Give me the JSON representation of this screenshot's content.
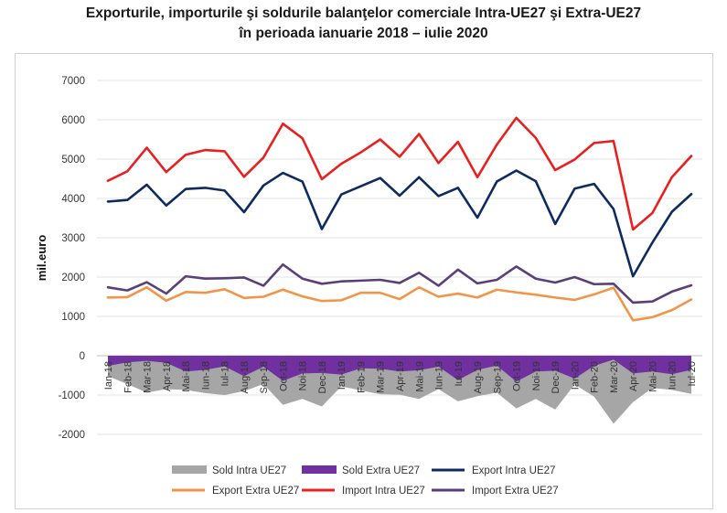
{
  "chart_data": {
    "type": "line",
    "title_line1": "Exporturile, importurile şi soldurile balanţelor comerciale Intra-UE27 şi Extra-UE27",
    "title_line2": "în perioada ianuarie 2018 – iulie 2020",
    "ylabel": "mil.euro",
    "ylim": [
      -2000,
      7000
    ],
    "yticks": [
      -2000,
      -1000,
      0,
      1000,
      2000,
      3000,
      4000,
      5000,
      6000,
      7000
    ],
    "categories": [
      "Ian-18",
      "Feb-18",
      "Mar-18",
      "Apr-18",
      "Mai-18",
      "Iun-18",
      "Iul-18",
      "Aug-18",
      "Sep-18",
      "Oct-18",
      "Noi-18",
      "Dec-18",
      "Ian-19",
      "Feb-19",
      "Mar-19",
      "Apr-19",
      "Mai-19",
      "Iun-19",
      "Iul-19",
      "Aug-19",
      "Sep-19",
      "Oct-19",
      "Noi-19",
      "Dec-19",
      "Ian-20",
      "Feb-20",
      "Mar-20",
      "Apr-20",
      "Mai-20",
      "Iun-20",
      "Iul-20"
    ],
    "legend_placement": "bottom",
    "series": [
      {
        "name": "Sold Intra UE27",
        "kind": "area",
        "color": "#a6a6a6",
        "values": [
          -520,
          -720,
          -940,
          -850,
          -870,
          -950,
          -1000,
          -900,
          -720,
          -1250,
          -1100,
          -1290,
          -780,
          -880,
          -980,
          -990,
          -1100,
          -850,
          -1160,
          -1030,
          -940,
          -1340,
          -1100,
          -1370,
          -730,
          -1040,
          -1730,
          -1180,
          -820,
          -870,
          -970
        ]
      },
      {
        "name": "Sold Extra UE27",
        "kind": "area",
        "color": "#7030a0",
        "values": [
          -260,
          -170,
          -130,
          -180,
          -400,
          -360,
          -270,
          -520,
          -280,
          -640,
          -450,
          -440,
          -480,
          -320,
          -330,
          -400,
          -370,
          -280,
          -620,
          -360,
          -250,
          -660,
          -400,
          -380,
          -580,
          -260,
          -100,
          -450,
          -400,
          -470,
          -360
        ]
      },
      {
        "name": "Export Intra UE27",
        "kind": "line",
        "color": "#0d2b5e",
        "values": [
          3920,
          3960,
          4350,
          3820,
          4240,
          4270,
          4200,
          3650,
          4330,
          4650,
          4430,
          3220,
          4100,
          4310,
          4520,
          4070,
          4540,
          4060,
          4270,
          3510,
          4430,
          4710,
          4440,
          3350,
          4250,
          4370,
          3730,
          2020,
          2880,
          3660,
          4110
        ]
      },
      {
        "name": "Export Extra UE27",
        "kind": "line",
        "color": "#f0954a",
        "values": [
          1480,
          1490,
          1740,
          1400,
          1620,
          1600,
          1690,
          1470,
          1500,
          1680,
          1510,
          1390,
          1410,
          1600,
          1600,
          1440,
          1740,
          1500,
          1580,
          1480,
          1680,
          1610,
          1550,
          1480,
          1420,
          1560,
          1730,
          900,
          980,
          1160,
          1430
        ]
      },
      {
        "name": "Import Intra UE27",
        "kind": "line",
        "color": "#e8201f",
        "values": [
          4450,
          4690,
          5290,
          4670,
          5110,
          5230,
          5200,
          4550,
          5040,
          5900,
          5530,
          4490,
          4880,
          5170,
          5500,
          5060,
          5640,
          4900,
          5440,
          4540,
          5370,
          6050,
          5540,
          4720,
          4990,
          5410,
          5460,
          3210,
          3630,
          4540,
          5080
        ]
      },
      {
        "name": "Import Extra UE27",
        "kind": "line",
        "color": "#5b3f78",
        "values": [
          1740,
          1660,
          1870,
          1580,
          2020,
          1960,
          1970,
          1990,
          1780,
          2320,
          1960,
          1830,
          1890,
          1910,
          1930,
          1850,
          2110,
          1780,
          2190,
          1840,
          1930,
          2270,
          1960,
          1860,
          2000,
          1820,
          1830,
          1350,
          1380,
          1630,
          1790
        ]
      }
    ]
  }
}
